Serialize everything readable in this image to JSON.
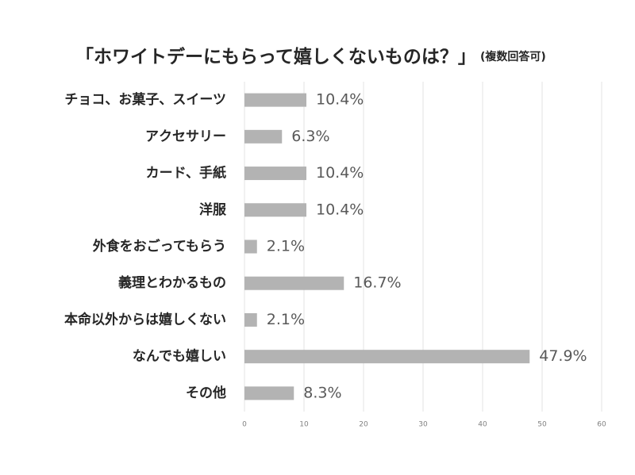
{
  "chart_data": {
    "type": "barh",
    "title": "「ホワイトデーにもらって嬉しくないものは？」",
    "subtitle": "(複数回答可)",
    "categories": [
      "チョコ、お菓子、スイーツ",
      "アクセサリー",
      "カード、手紙",
      "洋服",
      "外食をおごってもらう",
      "義理とわかるもの",
      "本命以外からは嬉しくない",
      "なんでも嬉しい",
      "その他"
    ],
    "values": [
      10.4,
      6.3,
      10.4,
      10.4,
      2.1,
      16.7,
      2.1,
      47.9,
      8.3
    ],
    "value_labels": [
      "10.4%",
      "6.3%",
      "10.4%",
      "10.4%",
      "2.1%",
      "16.7%",
      "2.1%",
      "47.9%",
      "8.3%"
    ],
    "color": "#b3b3b3",
    "xlim": [
      0,
      60
    ],
    "xticks": [
      0,
      10,
      20,
      30,
      40,
      50,
      60
    ],
    "grid": true
  }
}
